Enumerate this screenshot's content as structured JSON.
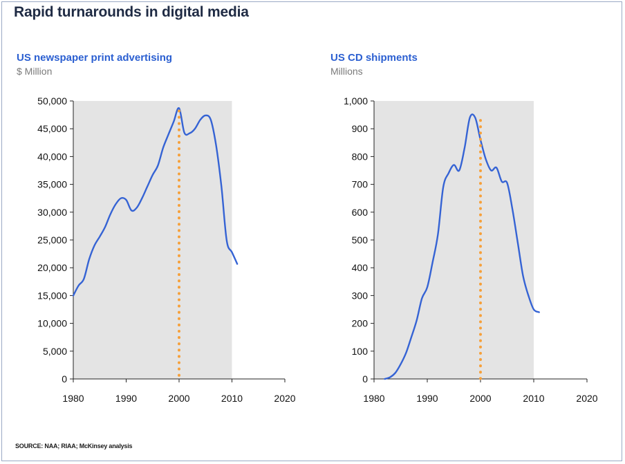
{
  "title": "Rapid turnarounds in digital media",
  "source": "SOURCE: NAA; RIAA; McKinsey analysis",
  "colors": {
    "line": "#3563d4",
    "marker": "#f6a03a",
    "plot_bg": "#e4e4e4",
    "title": "#1f2b44",
    "panel_title": "#2b5fd1"
  },
  "panels": [
    {
      "title": "US newspaper print advertising",
      "unit": "$ Million"
    },
    {
      "title": "US CD shipments",
      "unit": "Millions"
    }
  ],
  "chart_data": [
    {
      "type": "line",
      "title": "US newspaper print advertising",
      "ylabel": "$ Million",
      "xlim": [
        1980,
        2020
      ],
      "ylim": [
        0,
        50000
      ],
      "xticks": [
        1980,
        1990,
        2000,
        2010,
        2020
      ],
      "xtick_labels": [
        "1980",
        "1990",
        "2000",
        "2010",
        "2020"
      ],
      "yticks": [
        0,
        5000,
        10000,
        15000,
        20000,
        25000,
        30000,
        35000,
        40000,
        45000,
        50000
      ],
      "ytick_labels": [
        "0",
        "5,000",
        "10,000",
        "15,000",
        "20,000",
        "25,000",
        "30,000",
        "35,000",
        "40,000",
        "45,000",
        "50,000"
      ],
      "marker_x": 2000,
      "series": [
        {
          "name": "US newspaper print advertising",
          "x": [
            1980,
            1981,
            1982,
            1983,
            1984,
            1985,
            1986,
            1987,
            1988,
            1989,
            1990,
            1991,
            1992,
            1993,
            1994,
            1995,
            1996,
            1997,
            1998,
            1999,
            2000,
            2001,
            2002,
            2003,
            2004,
            2005,
            2006,
            2007,
            2008,
            2009,
            2010,
            2011
          ],
          "y": [
            15000,
            16800,
            18000,
            21500,
            24000,
            25600,
            27300,
            29600,
            31400,
            32500,
            32200,
            30300,
            30800,
            32500,
            34600,
            36700,
            38400,
            41600,
            44000,
            46300,
            48700,
            44300,
            44200,
            45000,
            46600,
            47400,
            46600,
            42000,
            34700,
            24900,
            22800,
            20700
          ]
        }
      ]
    },
    {
      "type": "line",
      "title": "US CD shipments",
      "ylabel": "Millions",
      "xlim": [
        1980,
        2020
      ],
      "ylim": [
        0,
        1000
      ],
      "xticks": [
        1980,
        1990,
        2000,
        2010,
        2020
      ],
      "xtick_labels": [
        "1980",
        "1990",
        "2000",
        "2010",
        "2020"
      ],
      "yticks": [
        0,
        100,
        200,
        300,
        400,
        500,
        600,
        700,
        800,
        900,
        1000
      ],
      "ytick_labels": [
        "0",
        "100",
        "200",
        "300",
        "400",
        "500",
        "600",
        "700",
        "800",
        "900",
        "1,000"
      ],
      "marker_x": 2000,
      "series": [
        {
          "name": "US CD shipments",
          "x": [
            1982,
            1983,
            1984,
            1985,
            1986,
            1987,
            1988,
            1989,
            1990,
            1991,
            1992,
            1993,
            1994,
            1995,
            1996,
            1997,
            1998,
            1999,
            2000,
            2001,
            2002,
            2003,
            2004,
            2005,
            2006,
            2007,
            2008,
            2009,
            2010,
            2011
          ],
          "y": [
            0,
            6,
            22,
            53,
            93,
            150,
            210,
            290,
            330,
            420,
            520,
            690,
            740,
            770,
            750,
            830,
            940,
            940,
            860,
            790,
            750,
            760,
            710,
            705,
            610,
            490,
            370,
            300,
            250,
            240
          ]
        }
      ]
    }
  ]
}
